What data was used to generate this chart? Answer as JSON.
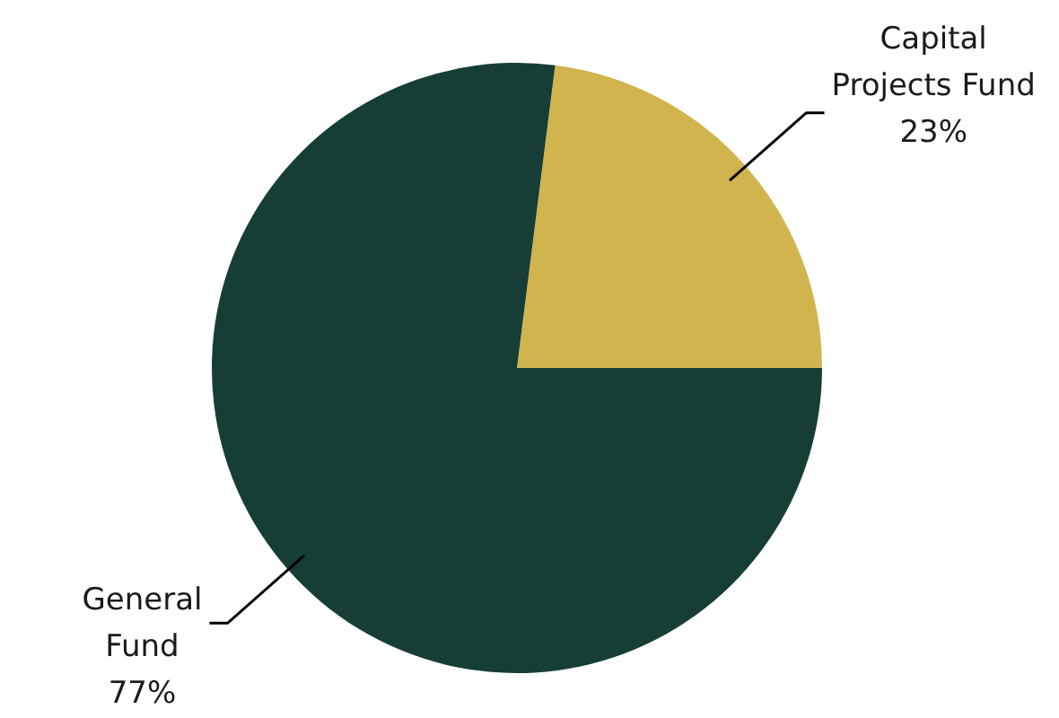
{
  "chart_data": {
    "type": "pie",
    "categories": [
      "Capital Projects Fund",
      "General Fund"
    ],
    "values": [
      23,
      77
    ],
    "colors": [
      "#d2b44f",
      "#173e36"
    ],
    "value_labels": [
      "23%",
      "77%"
    ],
    "legend": false
  }
}
